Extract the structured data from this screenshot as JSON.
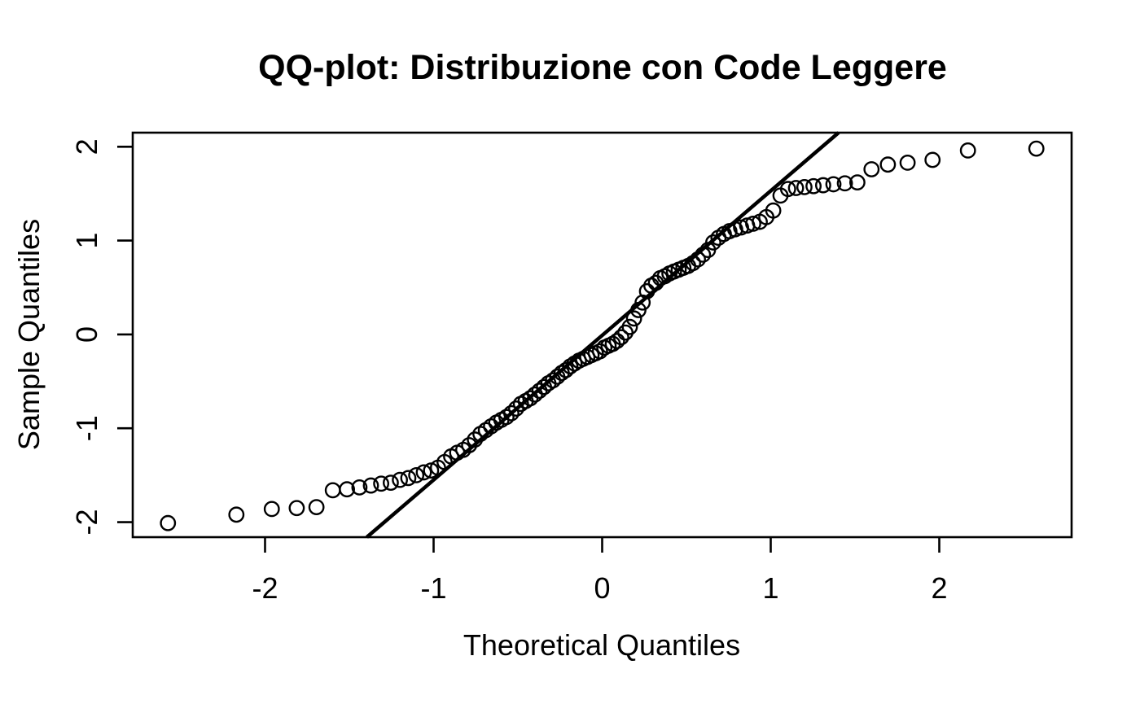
{
  "figure": {
    "title": "QQ-plot: Distribuzione con Code Leggere",
    "x_axis_label": "Theoretical Quantiles",
    "y_axis_label": "Sample Quantiles"
  },
  "colors": {
    "foreground": "#000000",
    "background": "#ffffff"
  },
  "chart_data": {
    "type": "scatter",
    "title": "QQ-plot: Distribuzione con Code Leggere",
    "xlabel": "Theoretical Quantiles",
    "ylabel": "Sample Quantiles",
    "xlim": [
      -2.785,
      2.785
    ],
    "ylim": [
      -2.16,
      2.15
    ],
    "x_tick_values": [
      -2,
      -1,
      0,
      1,
      2
    ],
    "x_tick_labels": [
      "-2",
      "-1",
      "0",
      "1",
      "2"
    ],
    "y_tick_values": [
      -2,
      -1,
      0,
      1,
      2
    ],
    "y_tick_labels": [
      "-2",
      "-1",
      "0",
      "1",
      "2"
    ],
    "grid": false,
    "legend": "none",
    "marker": "open-circle",
    "reference_line": {
      "type": "qqline",
      "slope": 1.54,
      "intercept": -0.01,
      "color": "#000000"
    },
    "series": [
      {
        "name": "sample-vs-theoretical-quantiles",
        "x": [
          -2.576,
          -2.17,
          -1.96,
          -1.812,
          -1.695,
          -1.598,
          -1.514,
          -1.44,
          -1.372,
          -1.311,
          -1.254,
          -1.2,
          -1.15,
          -1.103,
          -1.058,
          -1.015,
          -0.974,
          -0.935,
          -0.896,
          -0.86,
          -0.824,
          -0.789,
          -0.755,
          -0.722,
          -0.69,
          -0.659,
          -0.628,
          -0.598,
          -0.568,
          -0.539,
          -0.51,
          -0.482,
          -0.454,
          -0.426,
          -0.399,
          -0.372,
          -0.345,
          -0.319,
          -0.292,
          -0.266,
          -0.24,
          -0.215,
          -0.189,
          -0.164,
          -0.138,
          -0.113,
          -0.088,
          -0.063,
          -0.038,
          -0.013,
          0.013,
          0.038,
          0.063,
          0.088,
          0.113,
          0.138,
          0.164,
          0.189,
          0.215,
          0.24,
          0.266,
          0.292,
          0.319,
          0.345,
          0.372,
          0.399,
          0.426,
          0.454,
          0.482,
          0.51,
          0.539,
          0.568,
          0.598,
          0.628,
          0.659,
          0.69,
          0.722,
          0.755,
          0.789,
          0.824,
          0.86,
          0.896,
          0.935,
          0.974,
          1.015,
          1.058,
          1.103,
          1.15,
          1.2,
          1.254,
          1.311,
          1.372,
          1.44,
          1.514,
          1.598,
          1.695,
          1.812,
          1.96,
          2.17,
          2.576
        ],
        "y": [
          -2.01,
          -1.92,
          -1.86,
          -1.85,
          -1.84,
          -1.66,
          -1.65,
          -1.63,
          -1.61,
          -1.59,
          -1.58,
          -1.55,
          -1.53,
          -1.5,
          -1.47,
          -1.45,
          -1.42,
          -1.36,
          -1.3,
          -1.26,
          -1.23,
          -1.18,
          -1.12,
          -1.06,
          -1.02,
          -0.98,
          -0.94,
          -0.91,
          -0.88,
          -0.84,
          -0.79,
          -0.74,
          -0.71,
          -0.68,
          -0.64,
          -0.6,
          -0.56,
          -0.52,
          -0.49,
          -0.45,
          -0.41,
          -0.38,
          -0.34,
          -0.31,
          -0.28,
          -0.26,
          -0.24,
          -0.22,
          -0.2,
          -0.18,
          -0.14,
          -0.12,
          -0.1,
          -0.07,
          -0.03,
          0.02,
          0.08,
          0.17,
          0.26,
          0.34,
          0.46,
          0.52,
          0.55,
          0.6,
          0.62,
          0.65,
          0.67,
          0.69,
          0.71,
          0.73,
          0.76,
          0.8,
          0.85,
          0.9,
          0.98,
          1.03,
          1.07,
          1.1,
          1.12,
          1.14,
          1.16,
          1.18,
          1.2,
          1.25,
          1.32,
          1.48,
          1.55,
          1.56,
          1.57,
          1.58,
          1.59,
          1.6,
          1.61,
          1.62,
          1.76,
          1.81,
          1.83,
          1.86,
          1.96,
          1.98
        ]
      }
    ]
  }
}
